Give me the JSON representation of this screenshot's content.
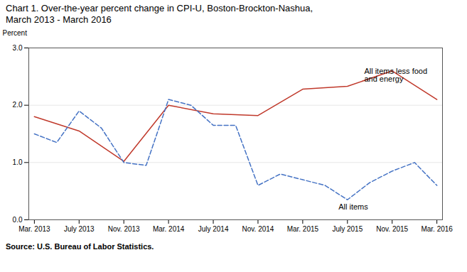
{
  "chart_data": {
    "type": "line",
    "title": "Chart 1.  Over-the-year percent change in CPI-U, Boston-Brockton-Nashua,",
    "subtitle": "March 2013 - March 2016",
    "ylabel": "Percent",
    "source": "Source: U.S. Bureau of Labor Statistics.",
    "xlim": [
      -0.5,
      36.5
    ],
    "xticks": [
      {
        "value": 0,
        "label": "Mar. 2013"
      },
      {
        "value": 4,
        "label": "July 2013"
      },
      {
        "value": 8,
        "label": "Nov. 2013"
      },
      {
        "value": 12,
        "label": "Mar. 2014"
      },
      {
        "value": 16,
        "label": "July 2014"
      },
      {
        "value": 20,
        "label": "Nov. 2014"
      },
      {
        "value": 24,
        "label": "Mar. 2015"
      },
      {
        "value": 28,
        "label": "July 2015"
      },
      {
        "value": 32,
        "label": "Nov. 2015"
      },
      {
        "value": 36,
        "label": "Mar. 2016"
      }
    ],
    "ylim": [
      0.0,
      3.0
    ],
    "yticks": [
      {
        "value": 0.0,
        "label": "0.0"
      },
      {
        "value": 1.0,
        "label": "1.0"
      },
      {
        "value": 2.0,
        "label": "2.0"
      },
      {
        "value": 3.0,
        "label": "3.0"
      }
    ],
    "grid": true,
    "series": [
      {
        "color": "#c0392b",
        "line_style": "solid",
        "x": [
          0,
          4,
          8,
          12,
          16,
          20,
          24,
          28,
          32,
          36
        ],
        "values": [
          1.8,
          1.55,
          1.02,
          2.0,
          1.85,
          1.82,
          2.28,
          2.33,
          2.6,
          2.1
        ]
      },
      {
        "color": "#4472c4",
        "line_style": "dashed",
        "x": [
          0,
          2,
          4,
          6,
          8,
          10,
          12,
          14,
          16,
          18,
          20,
          22,
          24,
          26,
          28,
          30,
          32,
          34,
          36
        ],
        "values": [
          1.5,
          1.35,
          1.9,
          1.6,
          1.0,
          0.95,
          2.1,
          2.0,
          1.65,
          1.65,
          0.6,
          0.8,
          0.7,
          0.6,
          0.35,
          0.65,
          0.85,
          1.0,
          0.6
        ]
      }
    ],
    "annotations": [
      {
        "text": "All items less food\nand energy",
        "x": 29.5,
        "y": 2.65
      },
      {
        "text": "All items",
        "x": 27.2,
        "y": 0.28
      }
    ]
  }
}
